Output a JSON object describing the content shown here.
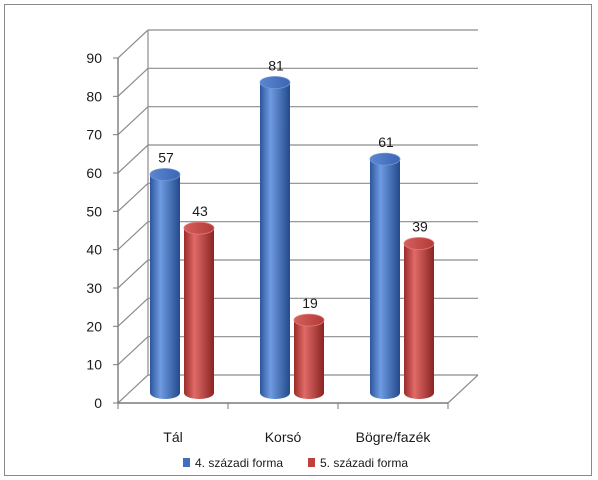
{
  "chart_data": {
    "type": "bar",
    "categories": [
      "Tál",
      "Korsó",
      "Bögre/fazék"
    ],
    "series": [
      {
        "name": "4. századi forma",
        "values": [
          57,
          81,
          61
        ],
        "color": "#3f6fc4"
      },
      {
        "name": "5. századi forma",
        "values": [
          43,
          19,
          39
        ],
        "color": "#c0403e"
      }
    ],
    "yticks": [
      0,
      10,
      20,
      30,
      40,
      50,
      60,
      70,
      80,
      90
    ],
    "ylim": [
      0,
      90
    ],
    "grid": true,
    "legend_position": "bottom",
    "style": "3d-cylinder"
  }
}
